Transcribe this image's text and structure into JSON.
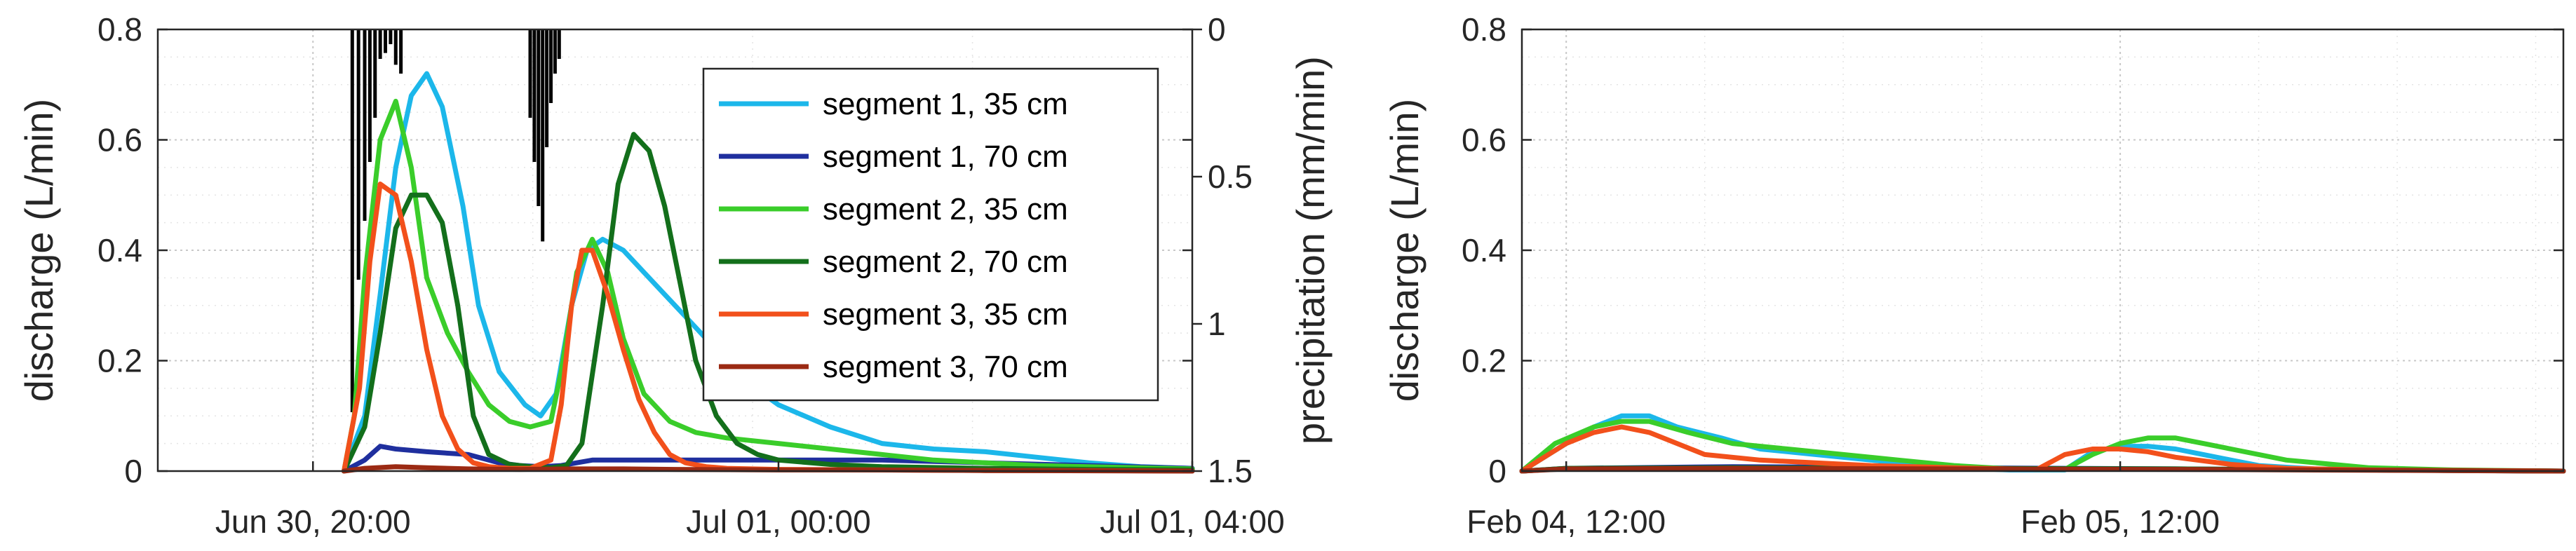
{
  "chart_data": [
    {
      "type": "line",
      "title": "",
      "xlabel": "",
      "ylabel": "discharge (L/min)",
      "y2label": "precipitation (mm/min)",
      "x_ticks": [
        {
          "value": 19.5,
          "label": "Jun 30, 20:00"
        },
        {
          "value": 24,
          "label": "Jul 01, 00:00"
        },
        {
          "value": 28,
          "label": "Jul 01, 04:00"
        }
      ],
      "xlim": [
        18,
        28
      ],
      "ylim": [
        0,
        0.8
      ],
      "y_ticks": [
        "0",
        "0.2",
        "0.4",
        "0.6",
        "0.8"
      ],
      "y2lim": [
        0,
        1.5
      ],
      "y2_reversed": true,
      "y2_ticks": [
        "0",
        "0.5",
        "1",
        "1.5"
      ],
      "grid": true,
      "legend_position": "top-right",
      "series": [
        {
          "name": "segment 1, 35 cm",
          "color": "#1CB7EA",
          "x": [
            19.8,
            20.0,
            20.15,
            20.3,
            20.45,
            20.6,
            20.75,
            20.95,
            21.1,
            21.3,
            21.55,
            21.7,
            21.85,
            22.0,
            22.15,
            22.3,
            22.5,
            22.7,
            22.9,
            23.1,
            23.4,
            23.7,
            24.0,
            24.5,
            25.0,
            25.5,
            26.0,
            26.5,
            27.0,
            27.5,
            28.0
          ],
          "y": [
            0.0,
            0.1,
            0.32,
            0.55,
            0.68,
            0.72,
            0.66,
            0.48,
            0.3,
            0.18,
            0.12,
            0.1,
            0.14,
            0.3,
            0.4,
            0.42,
            0.4,
            0.36,
            0.32,
            0.28,
            0.22,
            0.16,
            0.12,
            0.08,
            0.05,
            0.04,
            0.035,
            0.025,
            0.015,
            0.008,
            0.005
          ]
        },
        {
          "name": "segment 1, 70 cm",
          "color": "#1F2F9E",
          "x": [
            19.8,
            20.0,
            20.15,
            20.3,
            20.6,
            21.0,
            21.3,
            21.5,
            21.7,
            21.9,
            22.2,
            22.5,
            23.0,
            24.0,
            25.0,
            26.0,
            27.0,
            28.0
          ],
          "y": [
            0.0,
            0.02,
            0.045,
            0.04,
            0.035,
            0.03,
            0.015,
            0.01,
            0.008,
            0.01,
            0.02,
            0.02,
            0.02,
            0.02,
            0.02,
            0.015,
            0.01,
            0.005
          ]
        },
        {
          "name": "segment 2, 35 cm",
          "color": "#3ACD2A",
          "x": [
            19.8,
            19.9,
            20.0,
            20.15,
            20.3,
            20.45,
            20.6,
            20.8,
            21.0,
            21.2,
            21.4,
            21.6,
            21.8,
            21.9,
            22.05,
            22.2,
            22.35,
            22.5,
            22.7,
            22.95,
            23.2,
            23.5,
            24.0,
            24.5,
            25.0,
            25.5,
            26.0,
            26.5,
            27.0,
            28.0
          ],
          "y": [
            0.0,
            0.1,
            0.35,
            0.6,
            0.67,
            0.55,
            0.35,
            0.25,
            0.18,
            0.12,
            0.09,
            0.08,
            0.09,
            0.18,
            0.36,
            0.42,
            0.36,
            0.24,
            0.14,
            0.09,
            0.07,
            0.06,
            0.05,
            0.04,
            0.03,
            0.02,
            0.015,
            0.01,
            0.008,
            0.004
          ]
        },
        {
          "name": "segment 2, 70 cm",
          "color": "#136F1B",
          "x": [
            19.8,
            20.0,
            20.15,
            20.3,
            20.45,
            20.6,
            20.75,
            20.9,
            21.05,
            21.2,
            21.4,
            21.6,
            21.8,
            21.95,
            22.1,
            22.3,
            22.45,
            22.6,
            22.75,
            22.9,
            23.05,
            23.2,
            23.4,
            23.6,
            23.8,
            24.0,
            24.5,
            25.0,
            26.0,
            27.0,
            28.0
          ],
          "y": [
            0.0,
            0.08,
            0.25,
            0.44,
            0.5,
            0.5,
            0.45,
            0.3,
            0.1,
            0.03,
            0.012,
            0.008,
            0.006,
            0.01,
            0.05,
            0.3,
            0.52,
            0.61,
            0.58,
            0.48,
            0.34,
            0.2,
            0.1,
            0.05,
            0.03,
            0.02,
            0.012,
            0.008,
            0.005,
            0.003,
            0.002
          ]
        },
        {
          "name": "segment 3, 35 cm",
          "color": "#F2501B",
          "x": [
            19.8,
            19.95,
            20.05,
            20.15,
            20.3,
            20.45,
            20.6,
            20.75,
            20.9,
            21.05,
            21.2,
            21.4,
            21.6,
            21.8,
            21.9,
            22.0,
            22.1,
            22.2,
            22.35,
            22.5,
            22.65,
            22.8,
            22.95,
            23.1,
            23.3,
            23.5,
            24.0,
            25.0,
            26.0,
            27.0,
            28.0
          ],
          "y": [
            0.0,
            0.15,
            0.38,
            0.52,
            0.5,
            0.38,
            0.22,
            0.1,
            0.04,
            0.015,
            0.008,
            0.005,
            0.005,
            0.02,
            0.12,
            0.3,
            0.4,
            0.4,
            0.32,
            0.22,
            0.13,
            0.07,
            0.03,
            0.015,
            0.008,
            0.005,
            0.003,
            0.002,
            0.001,
            0.001,
            0.0
          ]
        },
        {
          "name": "segment 3, 70 cm",
          "color": "#9B2A13",
          "x": [
            19.8,
            20.0,
            20.3,
            20.6,
            21.0,
            21.5,
            22.0,
            22.5,
            23.0,
            24.0,
            25.0,
            26.0,
            28.0
          ],
          "y": [
            0.0,
            0.005,
            0.008,
            0.006,
            0.004,
            0.003,
            0.004,
            0.004,
            0.003,
            0.002,
            0.002,
            0.001,
            0.0
          ]
        }
      ],
      "precipitation": {
        "color": "#000000",
        "x": [
          19.88,
          19.94,
          20.0,
          20.05,
          20.1,
          20.15,
          20.2,
          20.25,
          20.3,
          20.35,
          21.6,
          21.64,
          21.68,
          21.72,
          21.76,
          21.8,
          21.84,
          21.88
        ],
        "y": [
          1.3,
          0.85,
          0.65,
          0.45,
          0.3,
          0.1,
          0.08,
          0.05,
          0.12,
          0.15,
          0.3,
          0.45,
          0.6,
          0.72,
          0.4,
          0.25,
          0.15,
          0.1
        ]
      }
    },
    {
      "type": "line",
      "title": "",
      "xlabel": "",
      "ylabel": "discharge (L/min)",
      "x_ticks": [
        {
          "value": 0.5,
          "label": "Feb 04, 12:00"
        },
        {
          "value": 1.5,
          "label": "Feb 05, 12:00"
        }
      ],
      "xlim": [
        0.42,
        2.3
      ],
      "ylim": [
        0,
        0.8
      ],
      "y_ticks": [
        "0",
        "0.2",
        "0.4",
        "0.6",
        "0.8"
      ],
      "grid": true,
      "series": [
        {
          "name": "segment 1, 35 cm",
          "color": "#1CB7EA",
          "x": [
            0.42,
            0.5,
            0.55,
            0.6,
            0.65,
            0.7,
            0.78,
            0.85,
            0.95,
            1.05,
            1.15,
            1.25,
            1.3,
            1.35,
            1.4,
            1.45,
            1.5,
            1.55,
            1.6,
            1.65,
            1.7,
            1.75,
            1.85,
            2.0,
            2.3
          ],
          "y": [
            0.0,
            0.05,
            0.08,
            0.1,
            0.1,
            0.08,
            0.06,
            0.04,
            0.03,
            0.02,
            0.01,
            0.004,
            0.002,
            0.002,
            0.002,
            0.035,
            0.045,
            0.045,
            0.04,
            0.03,
            0.02,
            0.01,
            0.004,
            0.002,
            0.0
          ]
        },
        {
          "name": "segment 1, 70 cm",
          "color": "#1F2F9E",
          "x": [
            0.42,
            0.5,
            0.8,
            1.2,
            1.6,
            2.3
          ],
          "y": [
            0.0,
            0.005,
            0.008,
            0.006,
            0.004,
            0.0
          ]
        },
        {
          "name": "segment 2, 35 cm",
          "color": "#3ACD2A",
          "x": [
            0.42,
            0.48,
            0.55,
            0.6,
            0.65,
            0.72,
            0.8,
            0.9,
            1.0,
            1.1,
            1.2,
            1.3,
            1.35,
            1.4,
            1.45,
            1.5,
            1.55,
            1.6,
            1.65,
            1.7,
            1.8,
            1.95,
            2.1,
            2.3
          ],
          "y": [
            0.0,
            0.05,
            0.08,
            0.09,
            0.09,
            0.07,
            0.05,
            0.04,
            0.03,
            0.02,
            0.01,
            0.004,
            0.003,
            0.003,
            0.03,
            0.05,
            0.06,
            0.06,
            0.05,
            0.04,
            0.02,
            0.006,
            0.002,
            0.0
          ]
        },
        {
          "name": "segment 2, 70 cm",
          "color": "#136F1B",
          "x": [
            0.42,
            0.5,
            0.8,
            1.2,
            1.6,
            2.3
          ],
          "y": [
            0.0,
            0.005,
            0.006,
            0.005,
            0.004,
            0.0
          ]
        },
        {
          "name": "segment 3, 35 cm",
          "color": "#F2501B",
          "x": [
            0.42,
            0.5,
            0.55,
            0.6,
            0.65,
            0.7,
            0.75,
            0.85,
            0.95,
            1.05,
            1.2,
            1.3,
            1.35,
            1.4,
            1.45,
            1.5,
            1.55,
            1.6,
            1.7,
            1.8,
            1.95,
            2.3
          ],
          "y": [
            0.0,
            0.05,
            0.07,
            0.08,
            0.07,
            0.05,
            0.03,
            0.02,
            0.015,
            0.01,
            0.006,
            0.004,
            0.003,
            0.03,
            0.04,
            0.04,
            0.035,
            0.025,
            0.012,
            0.005,
            0.002,
            0.0
          ]
        },
        {
          "name": "segment 3, 70 cm",
          "color": "#9B2A13",
          "x": [
            0.42,
            0.5,
            0.8,
            1.2,
            1.6,
            2.3
          ],
          "y": [
            0.0,
            0.004,
            0.005,
            0.004,
            0.003,
            0.0
          ]
        }
      ]
    }
  ]
}
